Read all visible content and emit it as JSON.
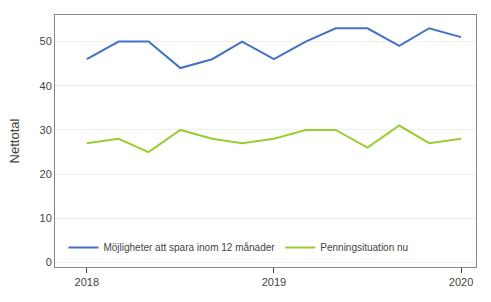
{
  "chart_data": {
    "type": "line",
    "ylabel": "Nettotal",
    "x": [
      2018.0,
      2018.17,
      2018.33,
      2018.5,
      2018.67,
      2018.83,
      2019.0,
      2019.17,
      2019.33,
      2019.5,
      2019.67,
      2019.83,
      2020.0
    ],
    "series": [
      {
        "name": "Möjligheter att spara inom 12 månader",
        "color": "#4472C4",
        "values": [
          46,
          50,
          50,
          44,
          46,
          50,
          46,
          50,
          53,
          53,
          49,
          53,
          51
        ]
      },
      {
        "name": "Penningsituation nu",
        "color": "#9ACD32",
        "values": [
          27,
          28,
          25,
          30,
          28,
          27,
          28,
          30,
          30,
          26,
          31,
          27,
          28
        ]
      }
    ],
    "xlim": [
      2017.83,
      2020.08
    ],
    "xticks": [
      2018,
      2019,
      2020
    ],
    "ylim": [
      -1,
      56
    ],
    "yticks": [
      0,
      10,
      20,
      30,
      40,
      50
    ],
    "grid": "y",
    "legend": "lower left"
  }
}
